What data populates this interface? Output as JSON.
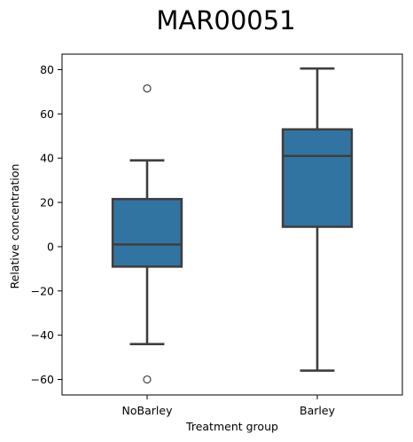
{
  "chart_data": {
    "type": "box",
    "title": "MAR00051",
    "xlabel": "Treatment group",
    "ylabel": "Relative concentration",
    "ylim": [
      -67,
      87
    ],
    "yticks": [
      80,
      60,
      40,
      20,
      0,
      -20,
      -40,
      -60
    ],
    "ytick_labels": [
      "80",
      "60",
      "40",
      "20",
      "0",
      "−20",
      "−40",
      "−60"
    ],
    "categories": [
      "NoBarley",
      "Barley"
    ],
    "grid": false,
    "box_color": "#3274a1",
    "line_color": "#3f3f3f",
    "boxes": [
      {
        "category": "NoBarley",
        "whisker_low": -44,
        "q1": -9,
        "median": 1,
        "q3": 21.5,
        "whisker_high": 39,
        "outliers": [
          71.5,
          -60
        ]
      },
      {
        "category": "Barley",
        "whisker_low": -56,
        "q1": 9,
        "median": 41,
        "q3": 53,
        "whisker_high": 80.5,
        "outliers": []
      }
    ]
  }
}
